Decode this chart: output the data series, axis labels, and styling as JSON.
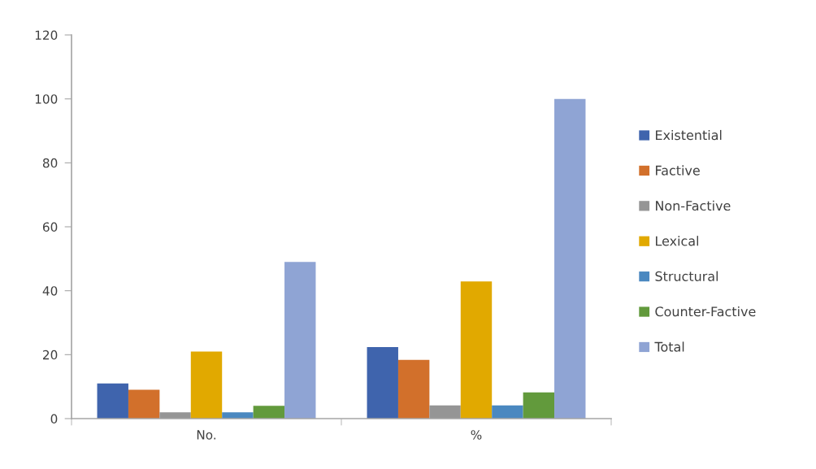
{
  "chart_data": {
    "type": "bar",
    "categories": [
      "No.",
      "%"
    ],
    "series": [
      {
        "name": "Existential",
        "color": "#3f64ad",
        "values": [
          11,
          22.4
        ]
      },
      {
        "name": "Factive",
        "color": "#d2702b",
        "values": [
          9,
          18.4
        ]
      },
      {
        "name": "Non-Factive",
        "color": "#959595",
        "values": [
          2,
          4.1
        ]
      },
      {
        "name": "Lexical",
        "color": "#e1a900",
        "values": [
          21,
          42.9
        ]
      },
      {
        "name": "Structural",
        "color": "#4a88c0",
        "values": [
          2,
          4.1
        ]
      },
      {
        "name": "Counter-Factive",
        "color": "#629a3c",
        "values": [
          4,
          8.2
        ]
      },
      {
        "name": "Total",
        "color": "#8fa4d4",
        "values": [
          49,
          100
        ]
      }
    ],
    "ylim": [
      0,
      120
    ],
    "yticks": [
      0,
      20,
      40,
      60,
      80,
      100,
      120
    ],
    "legend": "right"
  }
}
